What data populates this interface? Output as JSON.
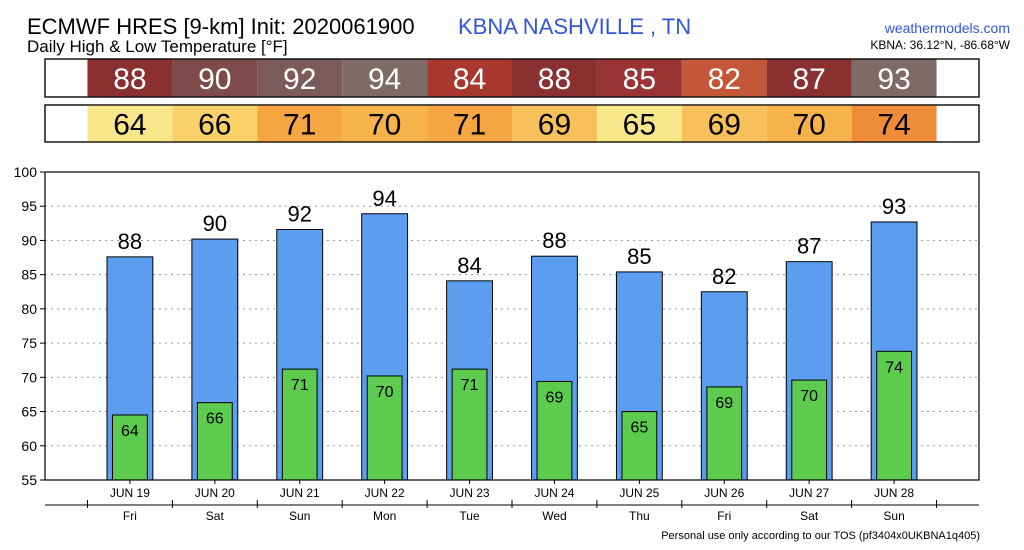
{
  "header": {
    "title": "ECMWF HRES [9-km] Init: 2020061900",
    "subtitle": "Daily High & Low Temperature [°F]",
    "station": "KBNA NASHVILLE      , TN",
    "site": "weathermodels.com",
    "coords": "KBNA: 36.12°N, -86.68°W"
  },
  "footer": {
    "tos": "Personal use only according to our TOS (pf3404x0UKBNA1q405)"
  },
  "colors": {
    "high_bar": "#5b9ef0",
    "low_bar": "#5dcc4e",
    "high_strip": [
      "#8a3030",
      "#7f4a4a",
      "#7a5a5a",
      "#7e6a66",
      "#a8382f",
      "#8a3030",
      "#9a3434",
      "#c4563a",
      "#8a3030",
      "#7e6a66"
    ],
    "low_strip": [
      "#f8e68a",
      "#fbd26a",
      "#f5a640",
      "#f8b24a",
      "#f5a640",
      "#f8c05a",
      "#f8e68a",
      "#f8c05a",
      "#f8b24a",
      "#ef8c3a"
    ]
  },
  "chart_data": {
    "type": "bar",
    "categories": [
      "JUN 19",
      "JUN 20",
      "JUN 21",
      "JUN 22",
      "JUN 23",
      "JUN 24",
      "JUN 25",
      "JUN 26",
      "JUN 27",
      "JUN 28"
    ],
    "days": [
      "Fri",
      "Sat",
      "Sun",
      "Mon",
      "Tue",
      "Wed",
      "Thu",
      "Fri",
      "Sat",
      "Sun"
    ],
    "highs": [
      88,
      90,
      92,
      94,
      84,
      88,
      85,
      82,
      87,
      93
    ],
    "lows": [
      64,
      66,
      71,
      70,
      71,
      69,
      65,
      69,
      70,
      74
    ],
    "high_values": [
      87.6,
      90.2,
      91.6,
      93.9,
      84.1,
      87.7,
      85.4,
      82.5,
      86.9,
      92.7
    ],
    "low_values": [
      64.5,
      66.3,
      71.2,
      70.2,
      71.2,
      69.4,
      65.0,
      68.6,
      69.6,
      73.8
    ],
    "ylim": [
      55,
      100
    ],
    "yticks": [
      55,
      60,
      65,
      70,
      75,
      80,
      85,
      90,
      95,
      100
    ],
    "grid": true
  }
}
